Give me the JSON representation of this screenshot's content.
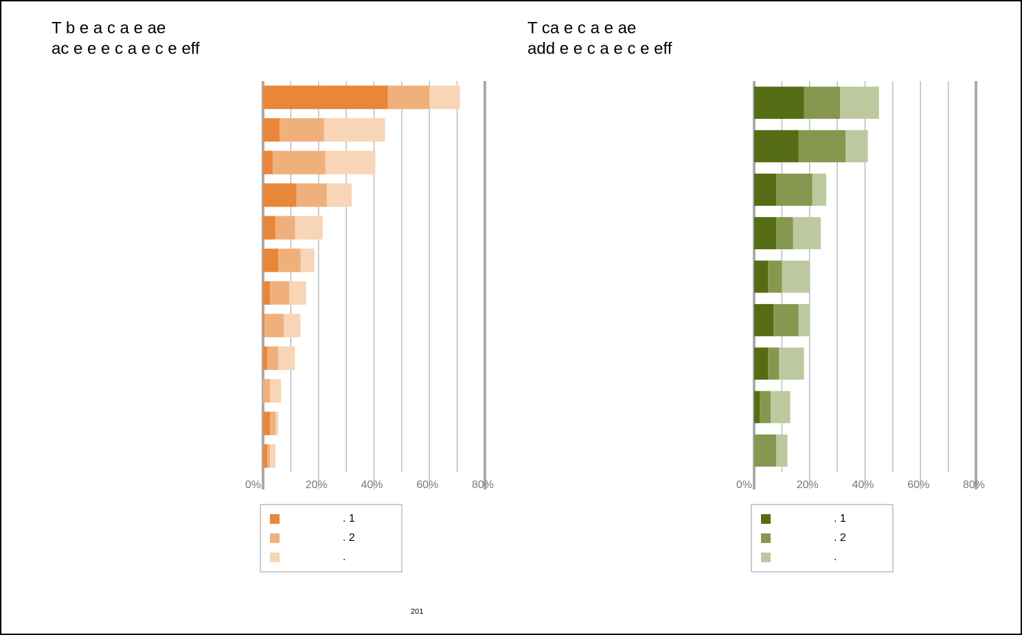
{
  "chart_data": [
    {
      "type": "hbar-stacked",
      "title": [
        "T b   e   a c   a e ae",
        "ac e e   e c   a e c  e   eff"
      ],
      "categories": [
        null,
        null,
        null,
        null,
        null,
        null,
        null,
        null,
        null,
        null,
        null,
        null
      ],
      "series": [
        {
          "name": ". 1",
          "color": "#e8873a",
          "values": [
            45,
            6,
            3.5,
            12,
            4.5,
            5.5,
            2.5,
            0.5,
            1.5,
            0,
            2.5,
            1.5
          ]
        },
        {
          "name": ". 2",
          "color": "#f0b07c",
          "values": [
            15,
            16,
            19,
            11,
            7,
            8,
            7,
            7,
            4,
            2.5,
            2,
            1
          ]
        },
        {
          "name": ".",
          "color": "#f7d5b6",
          "values": [
            11,
            22,
            18,
            9,
            10,
            5,
            6,
            6,
            6,
            4,
            1,
            2
          ]
        }
      ],
      "xlim": [
        0,
        80
      ],
      "xticks": [
        {
          "value": 0,
          "label": "0%"
        },
        {
          "value": 20,
          "label": "20%"
        },
        {
          "value": 40,
          "label": "40%"
        },
        {
          "value": 60,
          "label": "60%"
        },
        {
          "value": 80,
          "label": "80%"
        }
      ],
      "minor_xticks": [
        10,
        30,
        50,
        70
      ],
      "grid": true,
      "note": "201"
    },
    {
      "type": "hbar-stacked",
      "title": [
        "T   ca   e c   a e ae",
        "add e   e c   a e c  e   eff"
      ],
      "categories": [
        null,
        null,
        null,
        null,
        null,
        null,
        null,
        null,
        null
      ],
      "series": [
        {
          "name": ". 1",
          "color": "#556b14",
          "values": [
            18,
            16,
            8,
            8,
            5,
            7,
            5,
            2,
            0
          ]
        },
        {
          "name": ". 2",
          "color": "#86984f",
          "values": [
            13,
            17,
            13,
            6,
            5,
            9,
            4,
            4,
            8
          ]
        },
        {
          "name": ".",
          "color": "#bcc89e",
          "values": [
            14,
            8,
            5,
            10,
            10,
            4,
            9,
            7,
            4
          ]
        }
      ],
      "xlim": [
        0,
        80
      ],
      "xticks": [
        {
          "value": 0,
          "label": "0%"
        },
        {
          "value": 20,
          "label": "20%"
        },
        {
          "value": 40,
          "label": "40%"
        },
        {
          "value": 60,
          "label": "60%"
        },
        {
          "value": 80,
          "label": "80%"
        }
      ],
      "minor_xticks": [
        10,
        30,
        50,
        70
      ],
      "grid": true
    }
  ]
}
